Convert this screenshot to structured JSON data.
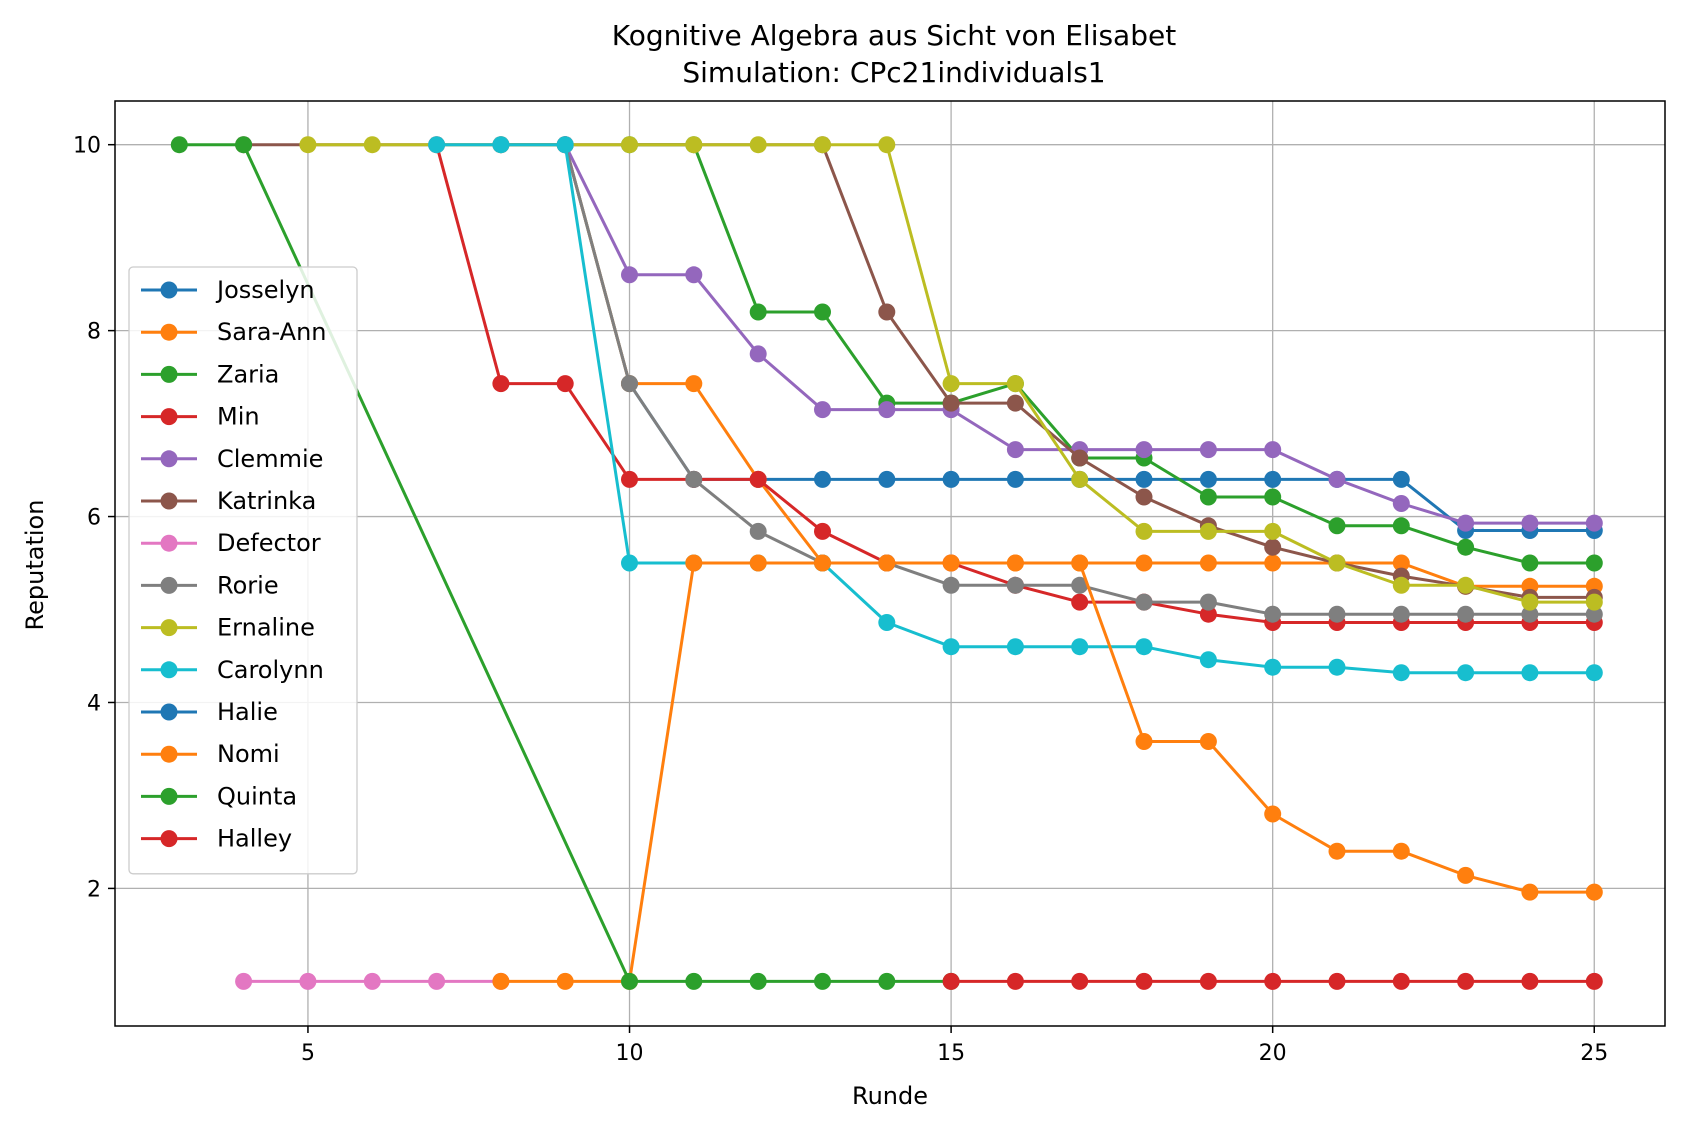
{
  "chart_data": {
    "type": "line",
    "title": "Kognitive Algebra aus Sicht von Elisabet",
    "subtitle": "Simulation: CPc21individuals1",
    "xlabel": "Runde",
    "ylabel": "Reputation",
    "xlim": [
      2.0,
      26.1
    ],
    "ylim": [
      0.52,
      10.47
    ],
    "xticks": [
      5,
      10,
      15,
      20,
      25
    ],
    "yticks": [
      2,
      4,
      6,
      8,
      10
    ],
    "grid": true,
    "legend_position": "center-left",
    "series": [
      {
        "name": "Josselyn",
        "color": "#1f77b4",
        "x": [
          8,
          9,
          10,
          11,
          12,
          13,
          14,
          15,
          16,
          17,
          18,
          19,
          20,
          21,
          22,
          23,
          24,
          25
        ],
        "y": [
          10,
          10,
          7.43,
          6.4,
          6.4,
          6.4,
          6.4,
          6.4,
          6.4,
          6.4,
          6.4,
          6.4,
          6.4,
          6.4,
          6.4,
          5.85,
          5.85,
          5.85
        ]
      },
      {
        "name": "Sara-Ann",
        "color": "#ff7f0e",
        "x": [
          8,
          9,
          10,
          11,
          12,
          13,
          14,
          15,
          16,
          17,
          18,
          19,
          20,
          21,
          22,
          23,
          24,
          25
        ],
        "y": [
          10,
          10,
          7.43,
          7.43,
          6.4,
          5.5,
          5.5,
          5.5,
          5.5,
          5.5,
          5.5,
          5.5,
          5.5,
          5.5,
          5.5,
          5.25,
          5.25,
          5.25
        ]
      },
      {
        "name": "Zaria",
        "color": "#2ca02c",
        "x": [
          10,
          11,
          12,
          13,
          14,
          15,
          16,
          17,
          18,
          19,
          20,
          21,
          22,
          23,
          24,
          25
        ],
        "y": [
          10,
          10,
          8.2,
          8.2,
          7.22,
          7.22,
          7.43,
          6.63,
          6.63,
          6.21,
          6.21,
          5.9,
          5.9,
          5.67,
          5.5,
          5.5
        ]
      },
      {
        "name": "Min",
        "color": "#d62728",
        "x": [
          7,
          8,
          9,
          10,
          11,
          12,
          13,
          14,
          15,
          16,
          17,
          18,
          19,
          20,
          21,
          22,
          23,
          24,
          25
        ],
        "y": [
          10,
          7.43,
          7.43,
          6.4,
          6.4,
          6.4,
          5.84,
          5.5,
          5.5,
          5.26,
          5.08,
          5.08,
          4.95,
          4.86,
          4.86,
          4.86,
          4.86,
          4.86,
          4.86
        ]
      },
      {
        "name": "Clemmie",
        "color": "#9467bd",
        "x": [
          9,
          10,
          11,
          12,
          13,
          14,
          15,
          16,
          17,
          18,
          19,
          20,
          21,
          22,
          23,
          24,
          25
        ],
        "y": [
          10,
          8.6,
          8.6,
          7.75,
          7.15,
          7.15,
          7.15,
          6.72,
          6.72,
          6.72,
          6.72,
          6.72,
          6.4,
          6.14,
          5.93,
          5.93,
          5.93
        ]
      },
      {
        "name": "Katrinka",
        "color": "#8c564b",
        "x": [
          4,
          13,
          14,
          15,
          16,
          17,
          18,
          19,
          20,
          21,
          22,
          23,
          24,
          25
        ],
        "y": [
          10,
          10,
          8.2,
          7.22,
          7.22,
          6.63,
          6.21,
          5.9,
          5.67,
          5.5,
          5.36,
          5.25,
          5.13,
          5.13
        ]
      },
      {
        "name": "Defector",
        "color": "#e377c2",
        "x": [
          4,
          5,
          6,
          7,
          8
        ],
        "y": [
          1,
          1,
          1,
          1,
          1
        ]
      },
      {
        "name": "Rorie",
        "color": "#7f7f7f",
        "x": [
          9,
          10,
          11,
          12,
          13,
          14,
          15,
          16,
          17,
          18,
          19,
          20,
          21,
          22,
          23,
          24,
          25
        ],
        "y": [
          10,
          7.43,
          6.4,
          5.84,
          5.5,
          5.5,
          5.26,
          5.26,
          5.26,
          5.08,
          5.08,
          4.95,
          4.95,
          4.95,
          4.95,
          4.95,
          4.95
        ]
      },
      {
        "name": "Ernaline",
        "color": "#bcbd22",
        "x": [
          5,
          6,
          10,
          11,
          12,
          13,
          14,
          15,
          16,
          17,
          18,
          19,
          20,
          21,
          22,
          23,
          24,
          25
        ],
        "y": [
          10,
          10,
          10,
          10,
          10,
          10,
          10,
          7.43,
          7.43,
          6.4,
          5.84,
          5.84,
          5.84,
          5.5,
          5.26,
          5.26,
          5.08,
          5.08
        ]
      },
      {
        "name": "Carolynn",
        "color": "#17becf",
        "x": [
          7,
          8,
          9,
          10,
          11,
          12,
          13,
          14,
          15,
          16,
          17,
          18,
          19,
          20,
          21,
          22,
          23,
          24,
          25
        ],
        "y": [
          10,
          10,
          10,
          5.5,
          5.5,
          5.5,
          5.5,
          4.86,
          4.6,
          4.6,
          4.6,
          4.6,
          4.46,
          4.38,
          4.38,
          4.32,
          4.32,
          4.32,
          4.32
        ]
      },
      {
        "name": "Halie",
        "color": "#1f77b4",
        "x": [],
        "y": []
      },
      {
        "name": "Nomi",
        "color": "#ff7f0e",
        "x": [
          8,
          9,
          10,
          11,
          12,
          13,
          14,
          15,
          16,
          17,
          18,
          19,
          20,
          21,
          22,
          23,
          24,
          25
        ],
        "y": [
          1,
          1,
          1,
          5.5,
          5.5,
          5.5,
          5.5,
          5.5,
          5.5,
          5.5,
          3.58,
          3.58,
          2.8,
          2.4,
          2.4,
          2.14,
          1.96,
          1.96
        ]
      },
      {
        "name": "Quinta",
        "color": "#2ca02c",
        "x": [
          3,
          4,
          10,
          11,
          12,
          13,
          14,
          15
        ],
        "y": [
          10,
          10,
          1,
          1,
          1,
          1,
          1,
          1
        ]
      },
      {
        "name": "Halley",
        "color": "#d62728",
        "x": [
          15,
          16,
          17,
          18,
          19,
          20,
          21,
          22,
          23,
          24,
          25
        ],
        "y": [
          1,
          1,
          1,
          1,
          1,
          1,
          1,
          1,
          1,
          1,
          1
        ]
      }
    ]
  }
}
